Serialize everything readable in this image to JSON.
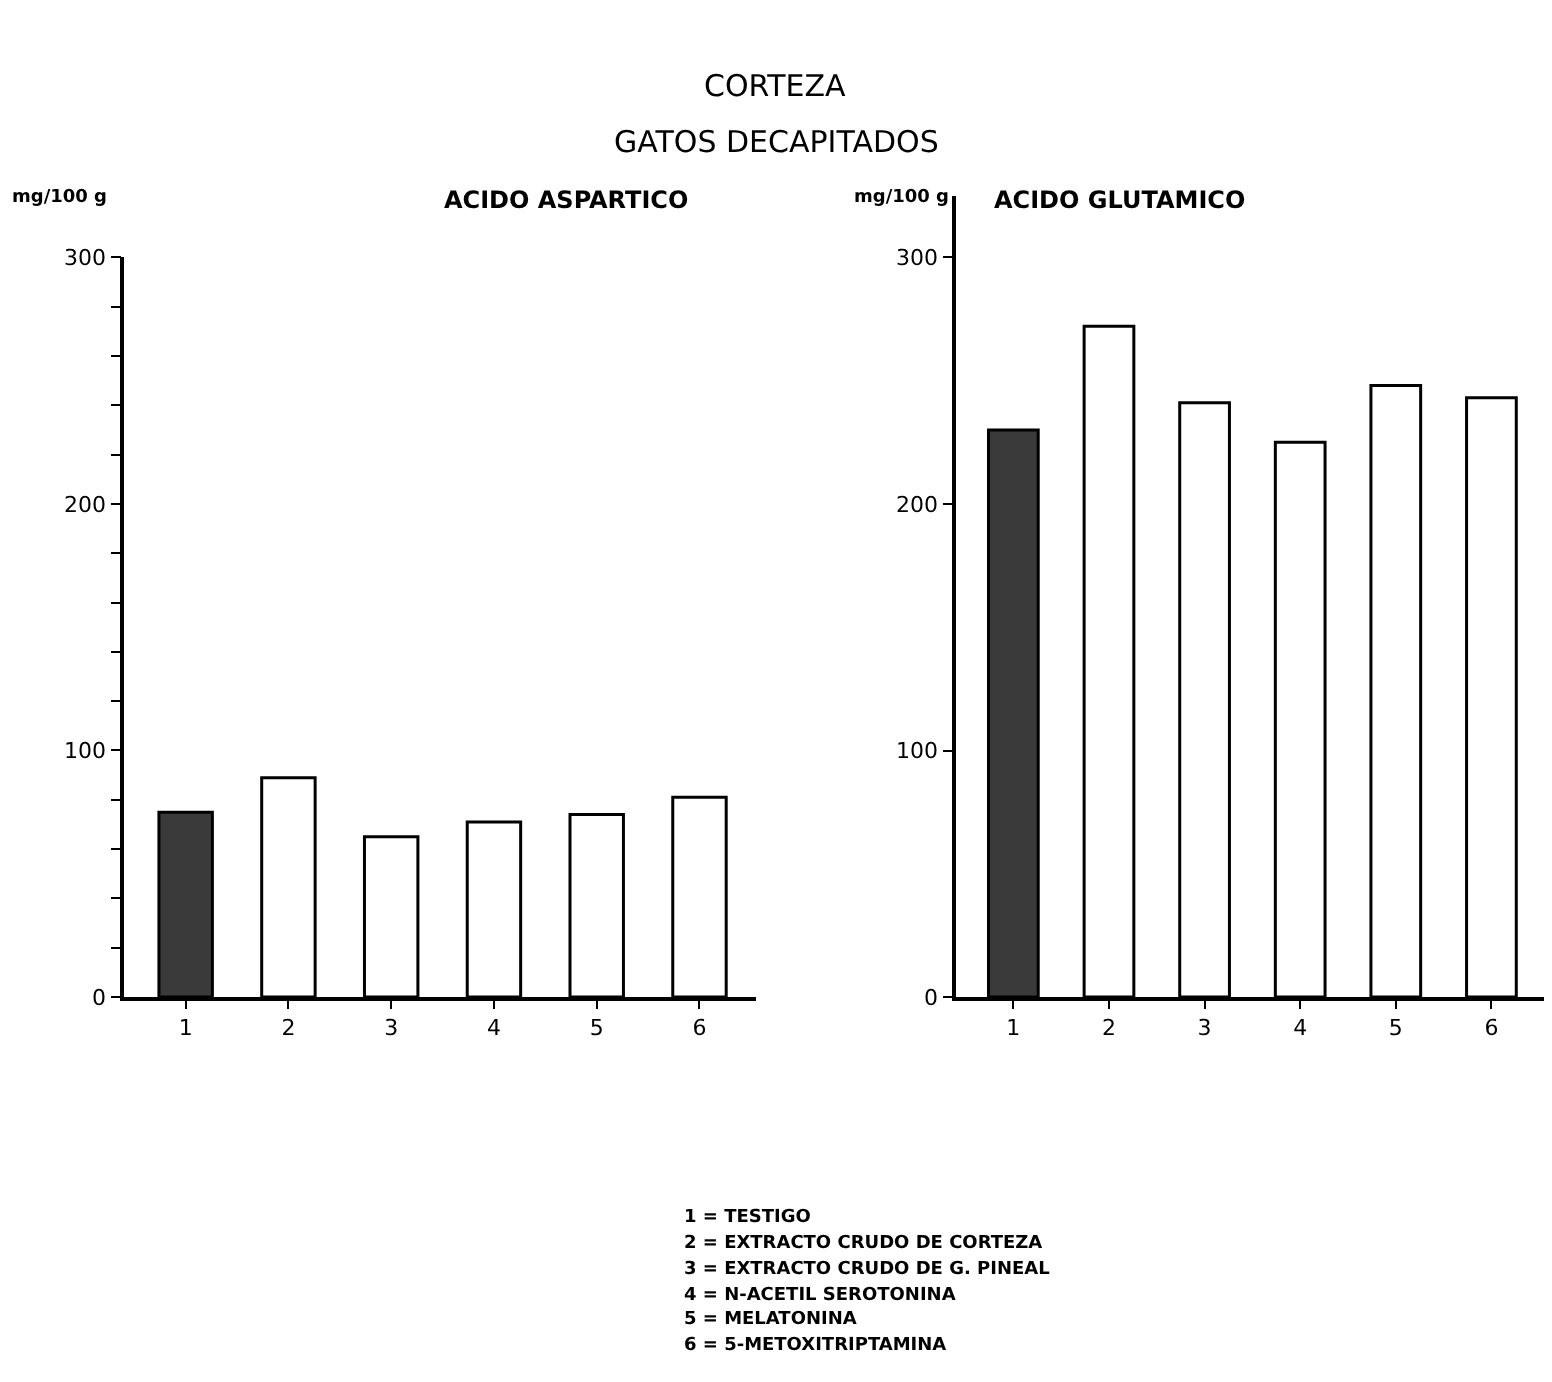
{
  "chart_data": [
    {
      "type": "bar",
      "title": "ACIDO ASPARTICO",
      "ylabel": "mg/100 g",
      "categories": [
        "1",
        "2",
        "3",
        "4",
        "5",
        "6"
      ],
      "values": [
        75,
        89,
        65,
        71,
        74,
        81
      ],
      "colors": [
        "#3a3a3a",
        "#ffffff",
        "#ffffff",
        "#ffffff",
        "#ffffff",
        "#ffffff"
      ],
      "ylim": [
        0,
        300
      ],
      "yticks": [
        0,
        {
          "value": 20,
          "label": null
        },
        {
          "value": 40,
          "label": null
        },
        {
          "value": 60,
          "label": null
        },
        {
          "value": 80,
          "label": null
        },
        100,
        {
          "value": 120,
          "label": null
        },
        {
          "value": 140,
          "label": null
        },
        {
          "value": 160,
          "label": null
        },
        {
          "value": 180,
          "label": null
        },
        200,
        {
          "value": 220,
          "label": null
        },
        {
          "value": 240,
          "label": null
        },
        {
          "value": 260,
          "label": null
        },
        {
          "value": 280,
          "label": null
        },
        300
      ],
      "annotations": [
        "CORTEZA",
        "GATOS DECAPITADOS",
        "1 = TESTIGO",
        "2 = EXTRACTO CRUDO DE CORTEZA",
        "3 = EXTRACTO CRUDO DE G. PINEAL",
        "4 = N-ACETIL SEROTONINA",
        "5 = MELATONINA",
        "6 = 5-METOXITRIPTAMINA"
      ]
    },
    {
      "type": "bar",
      "title": "ACIDO GLUTAMICO",
      "ylabel": "mg/100 g",
      "categories": [
        "1",
        "2",
        "3",
        "4",
        "5",
        "6"
      ],
      "values": [
        230,
        272,
        241,
        225,
        248,
        243
      ],
      "colors": [
        "#3a3a3a",
        "#ffffff",
        "#ffffff",
        "#ffffff",
        "#ffffff",
        "#ffffff"
      ],
      "ylim": [
        0,
        325
      ],
      "yticks": [
        0,
        100,
        200,
        300
      ]
    }
  ]
}
